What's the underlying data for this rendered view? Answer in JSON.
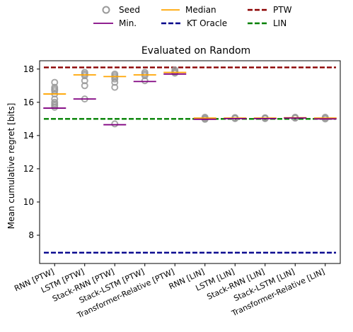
{
  "chart_data": {
    "type": "scatter",
    "title": "Evaluated on Random",
    "xlabel": "",
    "ylabel": "Mean cumulative regret [bits]",
    "ylim": [
      6.3,
      18.5
    ],
    "yticks": [
      8,
      10,
      12,
      14,
      16,
      18
    ],
    "grid": false,
    "legend_position": "top",
    "categories": [
      "RNN [PTW]",
      "LSTM [PTW]",
      "Stack-RNN [PTW]",
      "Stack-LSTM [PTW]",
      "Transformer-Relative [PTW]",
      "RNN [LIN]",
      "LSTM [LIN]",
      "Stack-RNN [LIN]",
      "Stack-LSTM [LIN]",
      "Transformer-Relative [LIN]"
    ],
    "seeds": [
      [
        17.2,
        16.9,
        16.8,
        16.7,
        16.5,
        16.2,
        16.0,
        15.9,
        15.8,
        15.7
      ],
      [
        17.8,
        17.7,
        17.6,
        17.3,
        17.0,
        16.2
      ],
      [
        17.7,
        17.6,
        17.5,
        17.4,
        17.2,
        16.9,
        14.7
      ],
      [
        17.8,
        17.7,
        17.6,
        17.3
      ],
      [
        17.95,
        17.85,
        17.8,
        17.75
      ],
      [
        15.1,
        15.05,
        15.0,
        14.98
      ],
      [
        15.08,
        15.05,
        15.02
      ],
      [
        15.07,
        15.04,
        15.02
      ],
      [
        15.1,
        15.07,
        15.05
      ],
      [
        15.1,
        15.05,
        15.0
      ]
    ],
    "median": [
      16.5,
      17.65,
      17.55,
      17.65,
      17.8,
      15.05,
      15.05,
      15.05,
      15.07,
      15.05
    ],
    "min": [
      15.65,
      16.2,
      14.65,
      17.25,
      17.7,
      14.98,
      15.02,
      15.02,
      15.05,
      15.0
    ],
    "reference_lines": [
      {
        "name": "PTW",
        "value": 18.1,
        "color": "#8b0000",
        "style": "dashed"
      },
      {
        "name": "KT Oracle",
        "value": 6.95,
        "color": "#00008b",
        "style": "dashed"
      },
      {
        "name": "LIN",
        "value": 15.0,
        "color": "#008000",
        "style": "dashed"
      }
    ],
    "colors": {
      "seed": "#999999",
      "median": "#ffa500",
      "min": "#800080"
    }
  },
  "legend": {
    "seed": "Seed",
    "median": "Median",
    "ptw": "PTW",
    "min": "Min.",
    "kt": "KT Oracle",
    "lin": "LIN"
  }
}
